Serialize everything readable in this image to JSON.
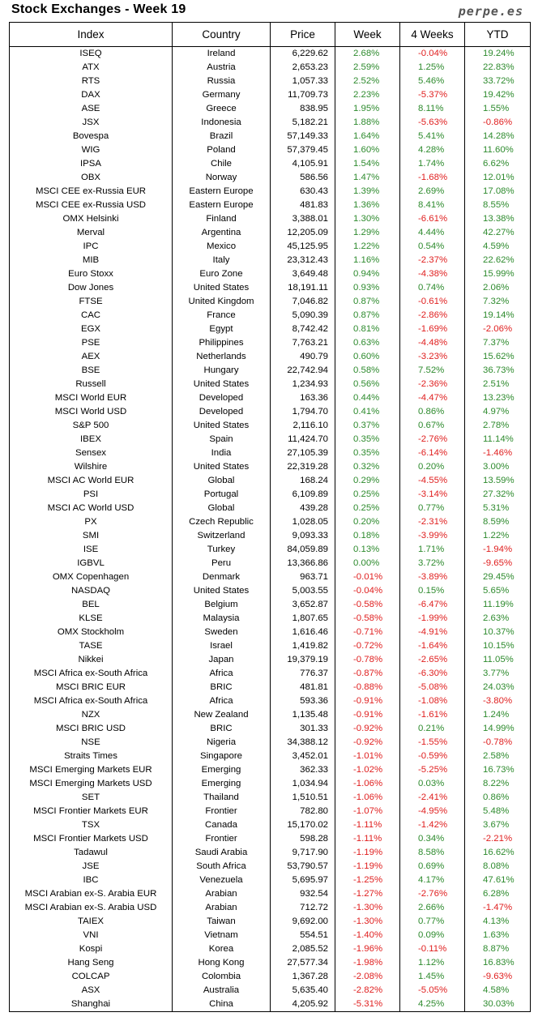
{
  "title": "Stock Exchanges - Week 19",
  "brand": "perpe.es",
  "colors": {
    "positive": "#2e8b2e",
    "negative": "#e02020"
  },
  "columns": [
    "Index",
    "Country",
    "Price",
    "Week",
    "4 Weeks",
    "YTD"
  ],
  "rows": [
    [
      "ISEQ",
      "Ireland",
      "6,229.62",
      "2.68%",
      "-0.04%",
      "19.24%"
    ],
    [
      "ATX",
      "Austria",
      "2,653.23",
      "2.59%",
      "1.25%",
      "22.83%"
    ],
    [
      "RTS",
      "Russia",
      "1,057.33",
      "2.52%",
      "5.46%",
      "33.72%"
    ],
    [
      "DAX",
      "Germany",
      "11,709.73",
      "2.23%",
      "-5.37%",
      "19.42%"
    ],
    [
      "ASE",
      "Greece",
      "838.95",
      "1.95%",
      "8.11%",
      "1.55%"
    ],
    [
      "JSX",
      "Indonesia",
      "5,182.21",
      "1.88%",
      "-5.63%",
      "-0.86%"
    ],
    [
      "Bovespa",
      "Brazil",
      "57,149.33",
      "1.64%",
      "5.41%",
      "14.28%"
    ],
    [
      "WIG",
      "Poland",
      "57,379.45",
      "1.60%",
      "4.28%",
      "11.60%"
    ],
    [
      "IPSA",
      "Chile",
      "4,105.91",
      "1.54%",
      "1.74%",
      "6.62%"
    ],
    [
      "OBX",
      "Norway",
      "586.56",
      "1.47%",
      "-1.68%",
      "12.01%"
    ],
    [
      "MSCI CEE ex-Russia EUR",
      "Eastern Europe",
      "630.43",
      "1.39%",
      "2.69%",
      "17.08%"
    ],
    [
      "MSCI CEE ex-Russia USD",
      "Eastern Europe",
      "481.83",
      "1.36%",
      "8.41%",
      "8.55%"
    ],
    [
      "OMX Helsinki",
      "Finland",
      "3,388.01",
      "1.30%",
      "-6.61%",
      "13.38%"
    ],
    [
      "Merval",
      "Argentina",
      "12,205.09",
      "1.29%",
      "4.44%",
      "42.27%"
    ],
    [
      "IPC",
      "Mexico",
      "45,125.95",
      "1.22%",
      "0.54%",
      "4.59%"
    ],
    [
      "MIB",
      "Italy",
      "23,312.43",
      "1.16%",
      "-2.37%",
      "22.62%"
    ],
    [
      "Euro Stoxx",
      "Euro Zone",
      "3,649.48",
      "0.94%",
      "-4.38%",
      "15.99%"
    ],
    [
      "Dow Jones",
      "United States",
      "18,191.11",
      "0.93%",
      "0.74%",
      "2.06%"
    ],
    [
      "FTSE",
      "United Kingdom",
      "7,046.82",
      "0.87%",
      "-0.61%",
      "7.32%"
    ],
    [
      "CAC",
      "France",
      "5,090.39",
      "0.87%",
      "-2.86%",
      "19.14%"
    ],
    [
      "EGX",
      "Egypt",
      "8,742.42",
      "0.81%",
      "-1.69%",
      "-2.06%"
    ],
    [
      "PSE",
      "Philippines",
      "7,763.21",
      "0.63%",
      "-4.48%",
      "7.37%"
    ],
    [
      "AEX",
      "Netherlands",
      "490.79",
      "0.60%",
      "-3.23%",
      "15.62%"
    ],
    [
      "BSE",
      "Hungary",
      "22,742.94",
      "0.58%",
      "7.52%",
      "36.73%"
    ],
    [
      "Russell",
      "United States",
      "1,234.93",
      "0.56%",
      "-2.36%",
      "2.51%"
    ],
    [
      "MSCI World EUR",
      "Developed",
      "163.36",
      "0.44%",
      "-4.47%",
      "13.23%"
    ],
    [
      "MSCI World USD",
      "Developed",
      "1,794.70",
      "0.41%",
      "0.86%",
      "4.97%"
    ],
    [
      "S&P 500",
      "United States",
      "2,116.10",
      "0.37%",
      "0.67%",
      "2.78%"
    ],
    [
      "IBEX",
      "Spain",
      "11,424.70",
      "0.35%",
      "-2.76%",
      "11.14%"
    ],
    [
      "Sensex",
      "India",
      "27,105.39",
      "0.35%",
      "-6.14%",
      "-1.46%"
    ],
    [
      "Wilshire",
      "United States",
      "22,319.28",
      "0.32%",
      "0.20%",
      "3.00%"
    ],
    [
      "MSCI AC World EUR",
      "Global",
      "168.24",
      "0.29%",
      "-4.55%",
      "13.59%"
    ],
    [
      "PSI",
      "Portugal",
      "6,109.89",
      "0.25%",
      "-3.14%",
      "27.32%"
    ],
    [
      "MSCI AC World USD",
      "Global",
      "439.28",
      "0.25%",
      "0.77%",
      "5.31%"
    ],
    [
      "PX",
      "Czech Republic",
      "1,028.05",
      "0.20%",
      "-2.31%",
      "8.59%"
    ],
    [
      "SMI",
      "Switzerland",
      "9,093.33",
      "0.18%",
      "-3.99%",
      "1.22%"
    ],
    [
      "ISE",
      "Turkey",
      "84,059.89",
      "0.13%",
      "1.71%",
      "-1.94%"
    ],
    [
      "IGBVL",
      "Peru",
      "13,366.86",
      "0.00%",
      "3.72%",
      "-9.65%"
    ],
    [
      "OMX Copenhagen",
      "Denmark",
      "963.71",
      "-0.01%",
      "-3.89%",
      "29.45%"
    ],
    [
      "NASDAQ",
      "United States",
      "5,003.55",
      "-0.04%",
      "0.15%",
      "5.65%"
    ],
    [
      "BEL",
      "Belgium",
      "3,652.87",
      "-0.58%",
      "-6.47%",
      "11.19%"
    ],
    [
      "KLSE",
      "Malaysia",
      "1,807.65",
      "-0.58%",
      "-1.99%",
      "2.63%"
    ],
    [
      "OMX Stockholm",
      "Sweden",
      "1,616.46",
      "-0.71%",
      "-4.91%",
      "10.37%"
    ],
    [
      "TASE",
      "Israel",
      "1,419.82",
      "-0.72%",
      "-1.64%",
      "10.15%"
    ],
    [
      "Nikkei",
      "Japan",
      "19,379.19",
      "-0.78%",
      "-2.65%",
      "11.05%"
    ],
    [
      "MSCI Africa ex-South Africa",
      "Africa",
      "776.37",
      "-0.87%",
      "-6.30%",
      "3.77%"
    ],
    [
      "MSCI BRIC EUR",
      "BRIC",
      "481.81",
      "-0.88%",
      "-5.08%",
      "24.03%"
    ],
    [
      "MSCI Africa ex-South Africa",
      "Africa",
      "593.36",
      "-0.91%",
      "-1.08%",
      "-3.80%"
    ],
    [
      "NZX",
      "New Zealand",
      "1,135.48",
      "-0.91%",
      "-1.61%",
      "1.24%"
    ],
    [
      "MSCI BRIC USD",
      "BRIC",
      "301.33",
      "-0.92%",
      "0.21%",
      "14.99%"
    ],
    [
      "NSE",
      "Nigeria",
      "34,388.12",
      "-0.92%",
      "-1.55%",
      "-0.78%"
    ],
    [
      "Straits Times",
      "Singapore",
      "3,452.01",
      "-1.01%",
      "-0.59%",
      "2.58%"
    ],
    [
      "MSCI Emerging Markets EUR",
      "Emerging",
      "362.33",
      "-1.02%",
      "-5.25%",
      "16.73%"
    ],
    [
      "MSCI Emerging Markets USD",
      "Emerging",
      "1,034.94",
      "-1.06%",
      "0.03%",
      "8.22%"
    ],
    [
      "SET",
      "Thailand",
      "1,510.51",
      "-1.06%",
      "-2.41%",
      "0.86%"
    ],
    [
      "MSCI Frontier Markets EUR",
      "Frontier",
      "782.80",
      "-1.07%",
      "-4.95%",
      "5.48%"
    ],
    [
      "TSX",
      "Canada",
      "15,170.02",
      "-1.11%",
      "-1.42%",
      "3.67%"
    ],
    [
      "MSCI Frontier Markets USD",
      "Frontier",
      "598.28",
      "-1.11%",
      "0.34%",
      "-2.21%"
    ],
    [
      "Tadawul",
      "Saudi Arabia",
      "9,717.90",
      "-1.19%",
      "8.58%",
      "16.62%"
    ],
    [
      "JSE",
      "South Africa",
      "53,790.57",
      "-1.19%",
      "0.69%",
      "8.08%"
    ],
    [
      "IBC",
      "Venezuela",
      "5,695.97",
      "-1.25%",
      "4.17%",
      "47.61%"
    ],
    [
      "MSCI Arabian ex-S. Arabia EUR",
      "Arabian",
      "932.54",
      "-1.27%",
      "-2.76%",
      "6.28%"
    ],
    [
      "MSCI Arabian ex-S. Arabia USD",
      "Arabian",
      "712.72",
      "-1.30%",
      "2.66%",
      "-1.47%"
    ],
    [
      "TAIEX",
      "Taiwan",
      "9,692.00",
      "-1.30%",
      "0.77%",
      "4.13%"
    ],
    [
      "VNI",
      "Vietnam",
      "554.51",
      "-1.40%",
      "0.09%",
      "1.63%"
    ],
    [
      "Kospi",
      "Korea",
      "2,085.52",
      "-1.96%",
      "-0.11%",
      "8.87%"
    ],
    [
      "Hang Seng",
      "Hong Kong",
      "27,577.34",
      "-1.98%",
      "1.12%",
      "16.83%"
    ],
    [
      "COLCAP",
      "Colombia",
      "1,367.28",
      "-2.08%",
      "1.45%",
      "-9.63%"
    ],
    [
      "ASX",
      "Australia",
      "5,635.40",
      "-2.82%",
      "-5.05%",
      "4.58%"
    ],
    [
      "Shanghai",
      "China",
      "4,205.92",
      "-5.31%",
      "4.25%",
      "30.03%"
    ]
  ]
}
